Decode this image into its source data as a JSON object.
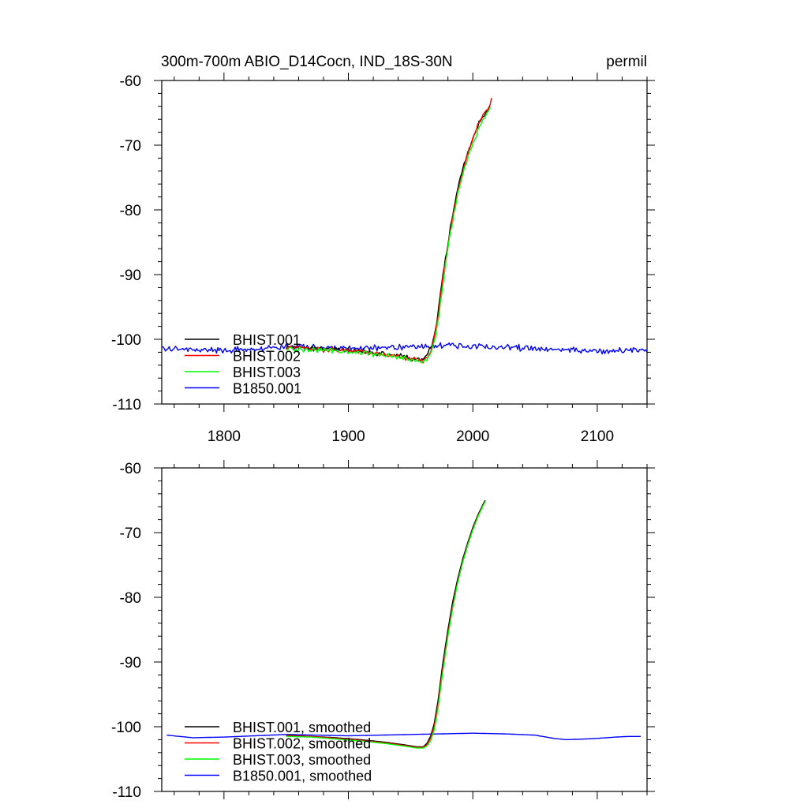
{
  "header": {
    "title": "300m-700m ABIO_D14Cocn, IND_18S-30N",
    "units": "permil"
  },
  "colors": {
    "BHIST.001": "#000000",
    "BHIST.002": "#ff0000",
    "BHIST.003": "#00ff00",
    "B1850.001": "#0000ff",
    "axes": "#000000",
    "background": "#ffffff"
  },
  "chart_data": [
    {
      "type": "line",
      "title": "300m-700m ABIO_D14Cocn, IND_18S-30N",
      "units": "permil",
      "xlim": [
        1750,
        2140
      ],
      "ylim": [
        -110,
        -60
      ],
      "xticks": [
        1800,
        1900,
        2000,
        2100
      ],
      "yticks": [
        -60,
        -70,
        -80,
        -90,
        -100,
        -110
      ],
      "x_tick_labels": [
        "1800",
        "1900",
        "2000",
        "2100"
      ],
      "y_tick_labels": [
        "-60",
        "-70",
        "-80",
        "-90",
        "-100",
        "-110"
      ],
      "grid": false,
      "legend_position": "bottom-left",
      "noisy": true,
      "series": [
        {
          "name": "BHIST.001",
          "color": "#000000",
          "x": [
            1850,
            1870,
            1890,
            1910,
            1930,
            1945,
            1955,
            1960,
            1963,
            1966,
            1969,
            1972,
            1976,
            1980,
            1984,
            1988,
            1992,
            1996,
            2000,
            2004,
            2008,
            2012,
            2014
          ],
          "y": [
            -101.2,
            -101.4,
            -101.6,
            -101.9,
            -102.3,
            -102.7,
            -103.1,
            -103.3,
            -102.6,
            -101.5,
            -99.5,
            -96,
            -90,
            -85,
            -80.5,
            -76.5,
            -73.5,
            -71,
            -69,
            -67,
            -65.5,
            -64.5,
            -64
          ]
        },
        {
          "name": "BHIST.002",
          "color": "#ff0000",
          "x": [
            1850,
            1870,
            1890,
            1910,
            1930,
            1945,
            1955,
            1960,
            1963,
            1966,
            1969,
            1972,
            1976,
            1980,
            1984,
            1988,
            1992,
            1996,
            2000,
            2004,
            2008,
            2012,
            2015
          ],
          "y": [
            -101.3,
            -101.4,
            -101.7,
            -102,
            -102.4,
            -102.8,
            -103.2,
            -103.4,
            -102.8,
            -101.8,
            -99.8,
            -96.5,
            -90.5,
            -85.5,
            -81,
            -77,
            -74,
            -71.2,
            -69,
            -67,
            -65.5,
            -64.3,
            -63
          ]
        },
        {
          "name": "BHIST.003",
          "color": "#00ff00",
          "x": [
            1850,
            1870,
            1890,
            1910,
            1930,
            1945,
            1955,
            1960,
            1963,
            1966,
            1969,
            1972,
            1976,
            1980,
            1984,
            1988,
            1992,
            1996,
            2000,
            2004,
            2008,
            2012,
            2014
          ],
          "y": [
            -101.5,
            -101.6,
            -101.8,
            -102.1,
            -102.5,
            -102.9,
            -103.3,
            -103.5,
            -103,
            -102.2,
            -100.5,
            -97.5,
            -91.5,
            -86,
            -81.5,
            -77.5,
            -74.5,
            -72,
            -69.8,
            -67.8,
            -66,
            -64.8,
            -64.3
          ]
        },
        {
          "name": "B1850.001",
          "color": "#0000ff",
          "x": [
            1750,
            1775,
            1800,
            1825,
            1850,
            1875,
            1900,
            1925,
            1950,
            1975,
            2000,
            2025,
            2050,
            2075,
            2100,
            2125,
            2140
          ],
          "y": [
            -101.3,
            -101.6,
            -101.7,
            -101.5,
            -101.2,
            -101.3,
            -101.4,
            -101.3,
            -101.1,
            -101.0,
            -101.1,
            -101.2,
            -101.4,
            -101.6,
            -101.8,
            -101.7,
            -101.6
          ]
        }
      ]
    },
    {
      "type": "line",
      "xlim": [
        1750,
        2140
      ],
      "ylim": [
        -110,
        -60
      ],
      "xticks": [
        1800,
        1900,
        2000,
        2100
      ],
      "yticks": [
        -60,
        -70,
        -80,
        -90,
        -100,
        -110
      ],
      "x_tick_labels": [],
      "y_tick_labels": [
        "-60",
        "-70",
        "-80",
        "-90",
        "-100",
        "-110"
      ],
      "grid": false,
      "legend_position": "bottom-left",
      "noisy": false,
      "series": [
        {
          "name": "BHIST.001, smoothed",
          "color": "#000000",
          "x": [
            1850,
            1870,
            1890,
            1910,
            1930,
            1945,
            1955,
            1960,
            1963,
            1966,
            1969,
            1972,
            1976,
            1980,
            1984,
            1988,
            1992,
            1996,
            2000,
            2004,
            2008,
            2010
          ],
          "y": [
            -101.3,
            -101.5,
            -101.7,
            -102,
            -102.4,
            -102.8,
            -103.1,
            -103.1,
            -102.6,
            -101.5,
            -99.5,
            -96,
            -90,
            -85,
            -80.5,
            -77,
            -74,
            -71.5,
            -69.2,
            -67.3,
            -65.7,
            -65
          ]
        },
        {
          "name": "BHIST.002, smoothed",
          "color": "#ff0000",
          "x": [
            1850,
            1870,
            1890,
            1910,
            1930,
            1945,
            1955,
            1960,
            1963,
            1966,
            1969,
            1972,
            1976,
            1980,
            1984,
            1988,
            1992,
            1996,
            2000,
            2004,
            2008,
            2010
          ],
          "y": [
            -101.4,
            -101.5,
            -101.8,
            -102.1,
            -102.5,
            -102.9,
            -103.2,
            -103.2,
            -102.8,
            -101.8,
            -100,
            -96.6,
            -90.8,
            -85.7,
            -81.2,
            -77.5,
            -74.4,
            -71.8,
            -69.5,
            -67.5,
            -65.9,
            -65.2
          ]
        },
        {
          "name": "BHIST.003, smoothed",
          "color": "#00ff00",
          "x": [
            1850,
            1870,
            1890,
            1910,
            1930,
            1945,
            1955,
            1960,
            1963,
            1966,
            1969,
            1972,
            1976,
            1980,
            1984,
            1988,
            1992,
            1996,
            2000,
            2004,
            2008,
            2010
          ],
          "y": [
            -101.5,
            -101.6,
            -101.9,
            -102.2,
            -102.6,
            -103,
            -103.3,
            -103.3,
            -103,
            -102.2,
            -100.5,
            -97.2,
            -91.3,
            -86,
            -81.5,
            -77.6,
            -74.5,
            -71.9,
            -69.6,
            -67.6,
            -65.9,
            -65.2
          ]
        },
        {
          "name": "B1850.001, smoothed",
          "color": "#0000ff",
          "x": [
            1754,
            1775,
            1800,
            1825,
            1850,
            1875,
            1900,
            1925,
            1950,
            1975,
            2000,
            2025,
            2050,
            2065,
            2075,
            2090,
            2100,
            2115,
            2125,
            2135
          ],
          "y": [
            -101.3,
            -101.7,
            -101.6,
            -101.4,
            -101.2,
            -101.3,
            -101.4,
            -101.3,
            -101.2,
            -101.1,
            -101.0,
            -101.1,
            -101.3,
            -101.8,
            -102,
            -101.9,
            -101.8,
            -101.6,
            -101.5,
            -101.5
          ]
        }
      ]
    }
  ]
}
